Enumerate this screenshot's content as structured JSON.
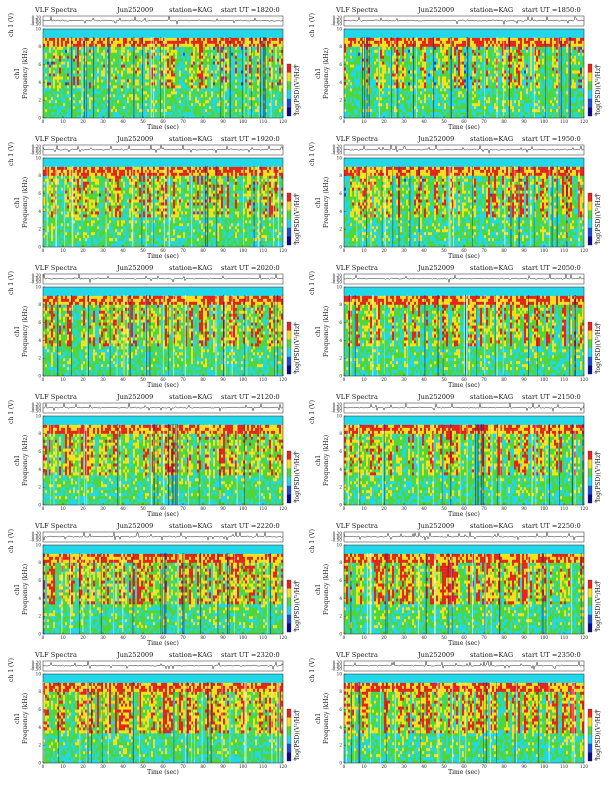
{
  "header": {
    "title": "VLF Spectra",
    "date": "Jun252009",
    "station": "station=KAG",
    "start_prefix": "start  UT  ="
  },
  "axes": {
    "top_ylabel": "ch 1 (V)",
    "main_ylabel": "Frequency  (kHz)",
    "ch_label": "ch1",
    "xlabel": "Time  (sec)",
    "cbar_label": "log(PSD)(V²/Hz)",
    "top_yticks": [
      "0.20",
      "0.00",
      "-0.50"
    ],
    "freq_ticks": [
      "0",
      "2",
      "4",
      "6",
      "8",
      "10"
    ],
    "time_ticks": [
      "0",
      "10",
      "20",
      "30",
      "40",
      "50",
      "60",
      "70",
      "80",
      "90",
      "100",
      "110",
      "120"
    ],
    "cbar_ticks": [
      "-8",
      "-9"
    ]
  },
  "colors": {
    "red": "#e8231c",
    "yellow": "#f7e11c",
    "green": "#4fd63a",
    "cyan": "#22d8e8",
    "blue": "#1a4cd8",
    "navy": "#0a0a8a",
    "trace": "#222222"
  },
  "chart_data": [
    {
      "type": "heatmap",
      "start": "1820:0",
      "x_range": [
        0,
        120
      ],
      "y_range": [
        0,
        10
      ],
      "xlabel": "Time  (sec)",
      "ylabel": "Frequency  (kHz)"
    },
    {
      "type": "heatmap",
      "start": "1850:0",
      "x_range": [
        0,
        120
      ],
      "y_range": [
        0,
        10
      ],
      "xlabel": "Time  (sec)",
      "ylabel": "Frequency  (kHz)"
    },
    {
      "type": "heatmap",
      "start": "1920:0",
      "x_range": [
        0,
        120
      ],
      "y_range": [
        0,
        10
      ],
      "xlabel": "Time  (sec)",
      "ylabel": "Frequency  (kHz)"
    },
    {
      "type": "heatmap",
      "start": "1950:0",
      "x_range": [
        0,
        120
      ],
      "y_range": [
        0,
        10
      ],
      "xlabel": "Time  (sec)",
      "ylabel": "Frequency  (kHz)"
    },
    {
      "type": "heatmap",
      "start": "2020:0",
      "x_range": [
        0,
        120
      ],
      "y_range": [
        0,
        10
      ],
      "xlabel": "Time  (sec)",
      "ylabel": "Frequency  (kHz)"
    },
    {
      "type": "heatmap",
      "start": "2050:0",
      "x_range": [
        0,
        120
      ],
      "y_range": [
        0,
        10
      ],
      "xlabel": "Time  (sec)",
      "ylabel": "Frequency  (kHz)"
    },
    {
      "type": "heatmap",
      "start": "2120:0",
      "x_range": [
        0,
        120
      ],
      "y_range": [
        0,
        10
      ],
      "xlabel": "Time  (sec)",
      "ylabel": "Frequency  (kHz)"
    },
    {
      "type": "heatmap",
      "start": "2150:0",
      "x_range": [
        0,
        120
      ],
      "y_range": [
        0,
        10
      ],
      "xlabel": "Time  (sec)",
      "ylabel": "Frequency  (kHz)"
    },
    {
      "type": "heatmap",
      "start": "2220:0",
      "x_range": [
        0,
        120
      ],
      "y_range": [
        0,
        10
      ],
      "xlabel": "Time  (sec)",
      "ylabel": "Frequency  (kHz)"
    },
    {
      "type": "heatmap",
      "start": "2250:0",
      "x_range": [
        0,
        120
      ],
      "y_range": [
        0,
        10
      ],
      "xlabel": "Time  (sec)",
      "ylabel": "Frequency  (kHz)"
    },
    {
      "type": "heatmap",
      "start": "2320:0",
      "x_range": [
        0,
        120
      ],
      "y_range": [
        0,
        10
      ],
      "xlabel": "Time  (sec)",
      "ylabel": "Frequency  (kHz)"
    },
    {
      "type": "heatmap",
      "start": "2350:0",
      "x_range": [
        0,
        120
      ],
      "y_range": [
        0,
        10
      ],
      "xlabel": "Time  (sec)",
      "ylabel": "Frequency  (kHz)"
    }
  ]
}
